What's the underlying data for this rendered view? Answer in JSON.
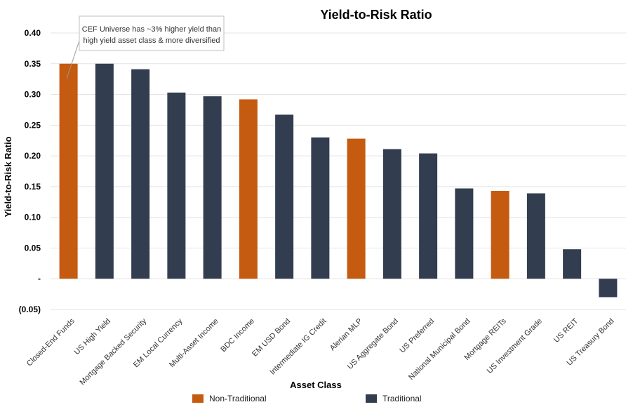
{
  "chart_data": {
    "type": "bar",
    "title": "Yield-to-Risk Ratio",
    "xlabel": "Asset Class",
    "ylabel": "Yield-to-Risk Ratio",
    "ylim": [
      -0.05,
      0.4
    ],
    "yticks": [
      {
        "value": 0.4,
        "label": "0.40"
      },
      {
        "value": 0.35,
        "label": "0.35"
      },
      {
        "value": 0.3,
        "label": "0.30"
      },
      {
        "value": 0.25,
        "label": "0.25"
      },
      {
        "value": 0.2,
        "label": "0.20"
      },
      {
        "value": 0.15,
        "label": "0.15"
      },
      {
        "value": 0.1,
        "label": "0.10"
      },
      {
        "value": 0.05,
        "label": "0.05"
      },
      {
        "value": 0.0,
        "label": "-"
      },
      {
        "value": -0.05,
        "label": "(0.05)"
      }
    ],
    "grid": true,
    "legend_position": "bottom",
    "categories": [
      "Closed-End Funds",
      "US High Yield",
      "Mortgage Backed Security",
      "EM Local Currency",
      "Multi-Asset Income",
      "BDC Income",
      "EM USD Bond",
      "Intermediate IG Credit",
      "Alerian MLP",
      "US Aggregate Bond",
      "US Preferred",
      "National Municipal Bond",
      "Mortgage REITs",
      "US Investment Grade",
      "US REIT",
      "US Treasury Bond"
    ],
    "values": [
      0.35,
      0.35,
      0.341,
      0.303,
      0.297,
      0.292,
      0.267,
      0.23,
      0.228,
      0.211,
      0.204,
      0.147,
      0.143,
      0.139,
      0.048,
      -0.03
    ],
    "groups": [
      "Non-Traditional",
      "Traditional",
      "Traditional",
      "Traditional",
      "Traditional",
      "Non-Traditional",
      "Traditional",
      "Traditional",
      "Non-Traditional",
      "Traditional",
      "Traditional",
      "Traditional",
      "Non-Traditional",
      "Traditional",
      "Traditional",
      "Traditional"
    ],
    "legend": [
      {
        "name": "Non-Traditional",
        "color": "#c55a11"
      },
      {
        "name": "Traditional",
        "color": "#323e50"
      }
    ],
    "annotation": {
      "lines": [
        "CEF Universe has ~3% higher yield than",
        "high yield asset class & more diversified"
      ]
    }
  }
}
